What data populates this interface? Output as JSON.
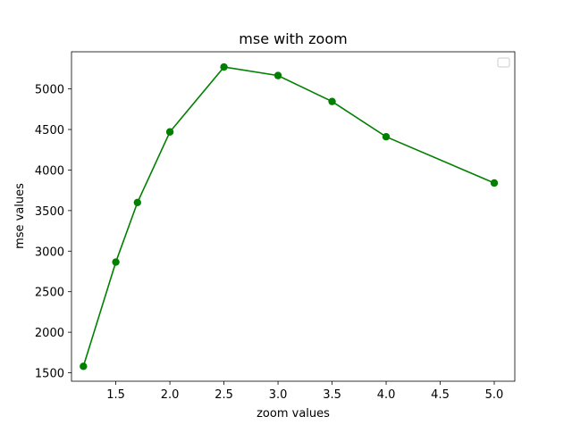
{
  "chart_data": {
    "type": "line",
    "title": "mse with zoom",
    "xlabel": "zoom values",
    "ylabel": "mse values",
    "x": [
      1.2,
      1.5,
      1.7,
      2.0,
      2.5,
      3.0,
      3.5,
      4.0,
      5.0
    ],
    "series": [
      {
        "values": [
          1580,
          2865,
          3600,
          4470,
          5270,
          5165,
          4845,
          4410,
          3840
        ],
        "color": "#008000",
        "marker": "circle"
      }
    ],
    "xlim": [
      1.09,
      5.19
    ],
    "ylim": [
      1396,
      5458
    ],
    "xticks": [
      1.5,
      2.0,
      2.5,
      3.0,
      3.5,
      4.0,
      4.5,
      5.0
    ],
    "xtick_labels": [
      "1.5",
      "2.0",
      "2.5",
      "3.0",
      "3.5",
      "4.0",
      "4.5",
      "5.0"
    ],
    "yticks": [
      1500,
      2000,
      2500,
      3000,
      3500,
      4000,
      4500,
      5000
    ],
    "ytick_labels": [
      "1500",
      "2000",
      "2500",
      "3000",
      "3500",
      "4000",
      "4500",
      "5000"
    ],
    "grid": false,
    "legend": {
      "placement": "top-right",
      "entries": []
    }
  }
}
